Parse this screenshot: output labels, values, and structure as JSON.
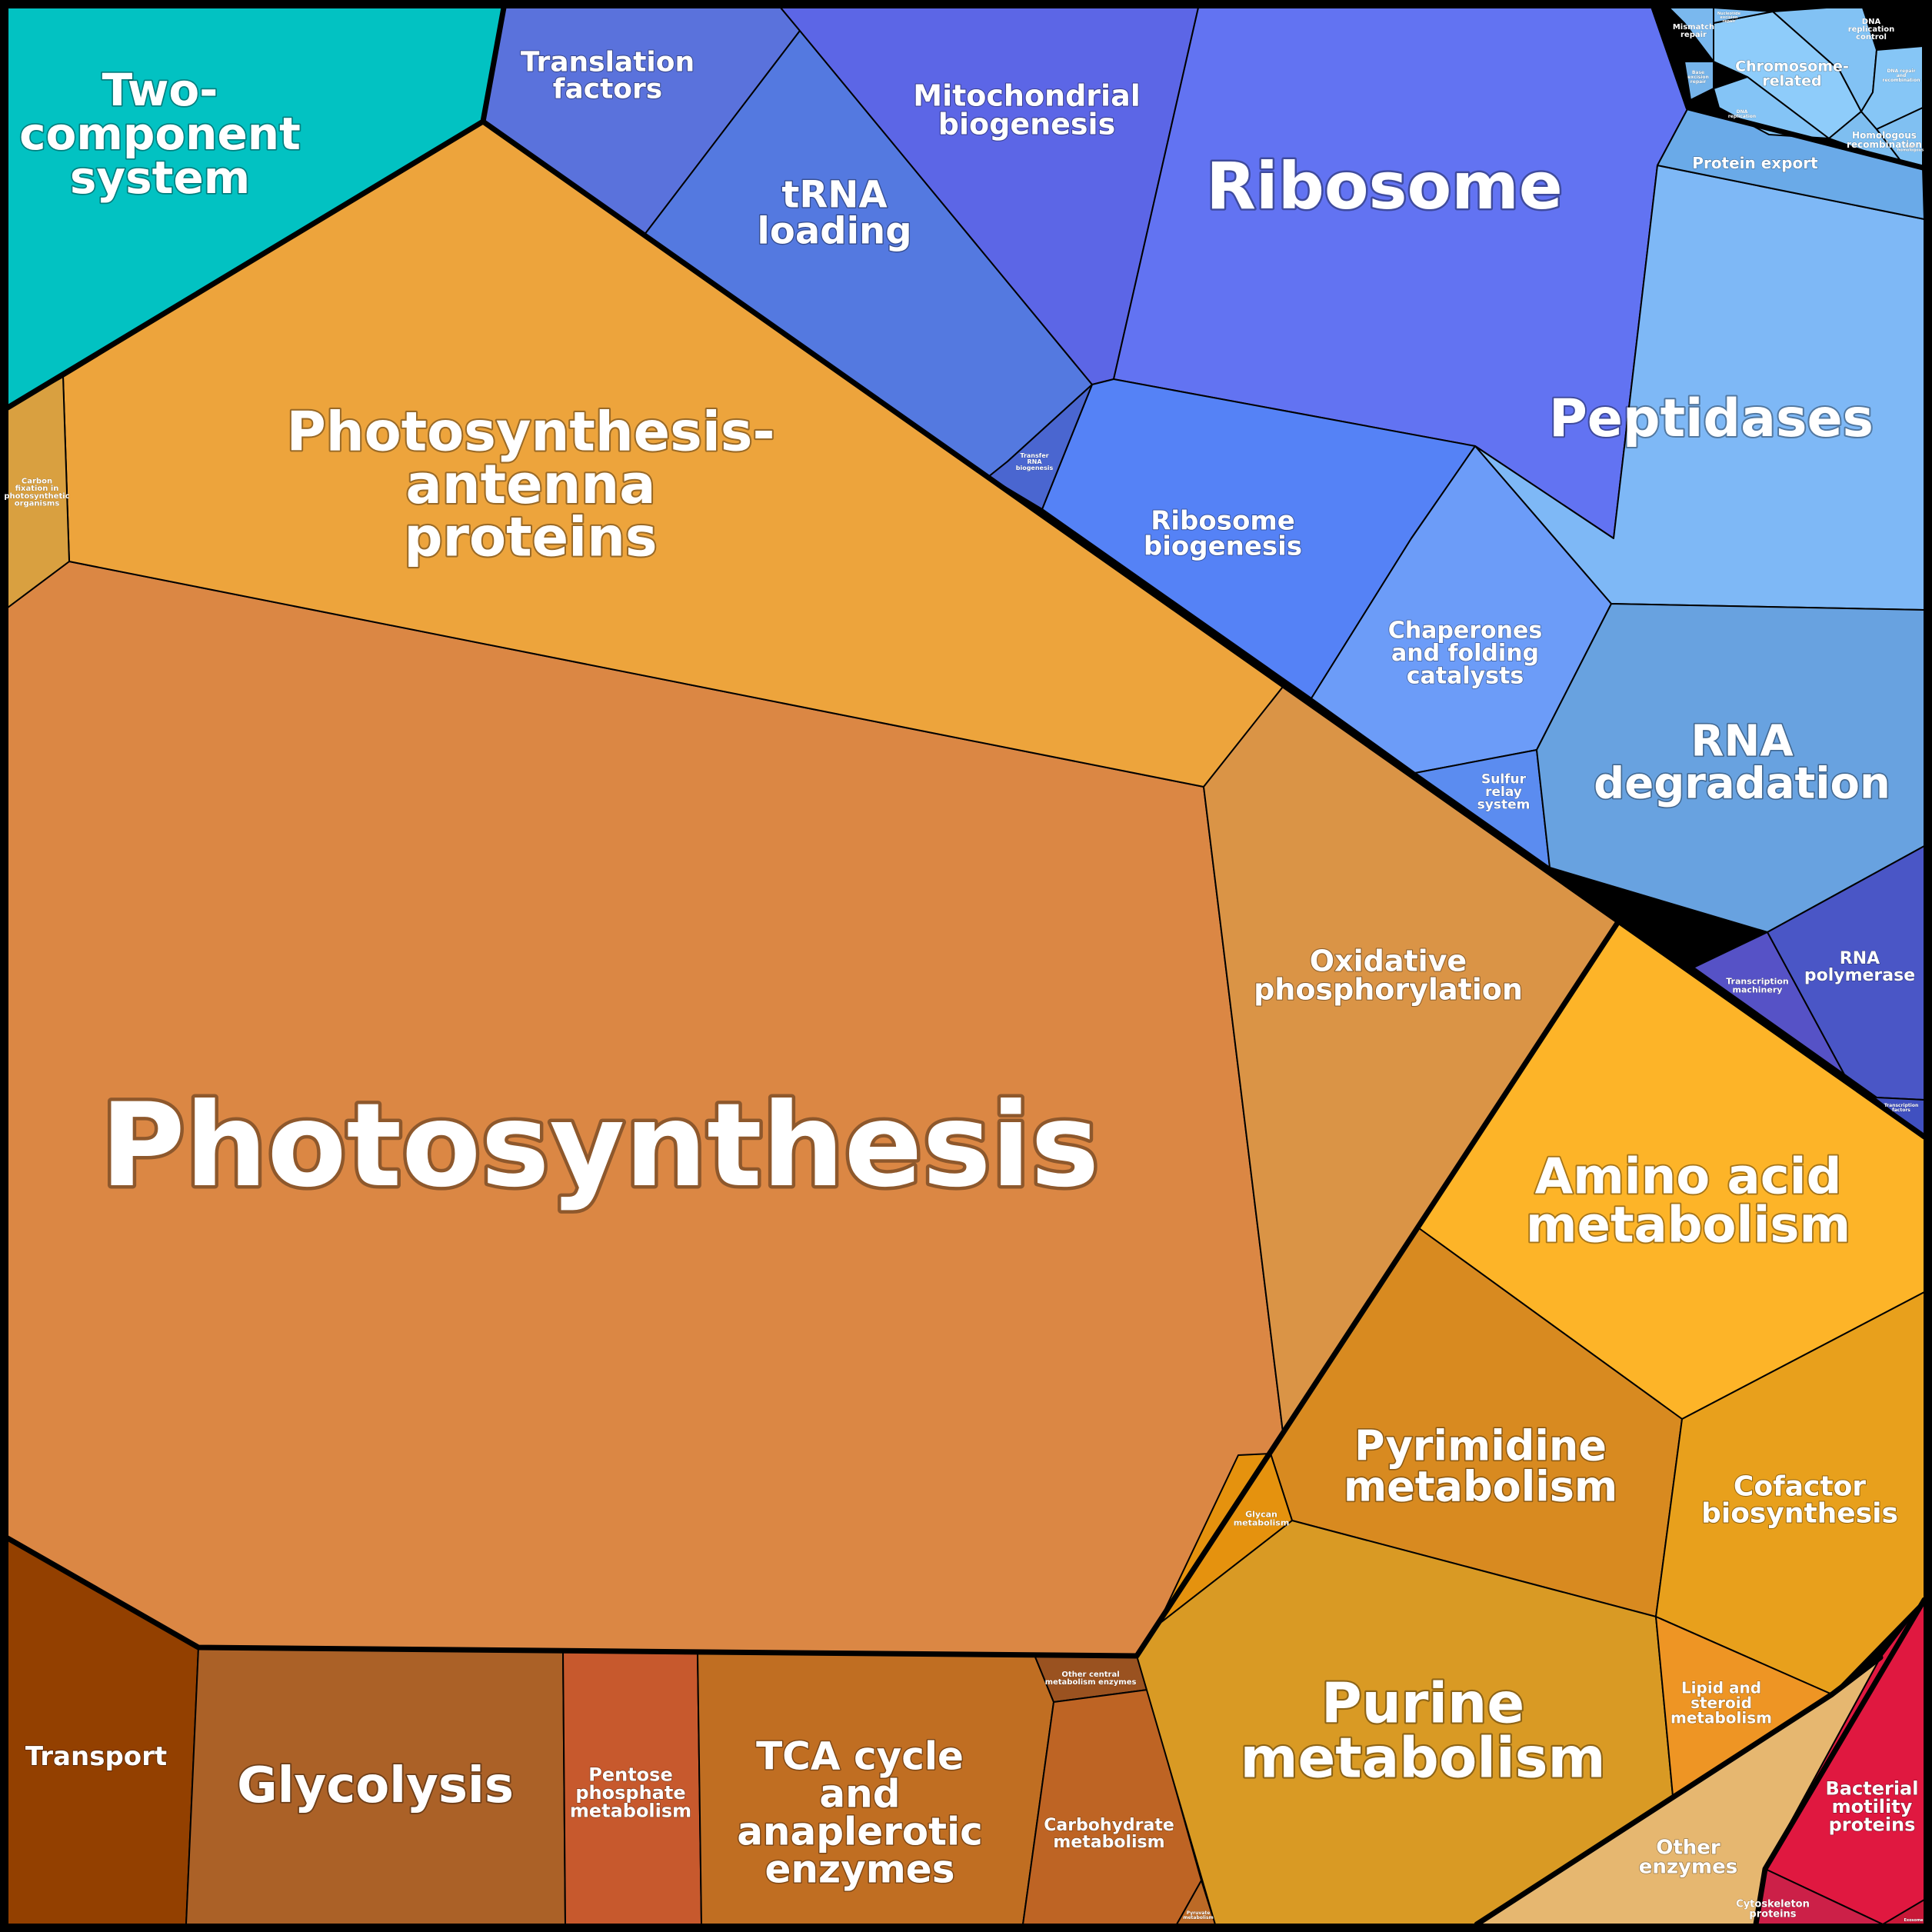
{
  "diagram": {
    "type": "voronoi-treemap",
    "cells": [
      {
        "id": "photosynthesis",
        "label": [
          "Photosynthesis"
        ],
        "color": "#DB8744"
      },
      {
        "id": "antenna",
        "label": [
          "Photosynthesis-",
          "antenna",
          "proteins"
        ],
        "color": "#EDA43C"
      },
      {
        "id": "carbon-fixation",
        "label": [
          "Carbon",
          "fixation in",
          "photosynthetic",
          "organisms"
        ],
        "color": "#D9A040"
      },
      {
        "id": "oxphos",
        "label": [
          "Oxidative",
          "phosphorylation"
        ],
        "color": "#DA9446"
      },
      {
        "id": "two-component",
        "label": [
          "Two-",
          "component",
          "system"
        ],
        "color": "#02C2C2"
      },
      {
        "id": "transport",
        "label": [
          "Transport"
        ],
        "color": "#934000"
      },
      {
        "id": "glycolysis",
        "label": [
          "Glycolysis"
        ],
        "color": "#AB6127"
      },
      {
        "id": "pentose",
        "label": [
          "Pentose",
          "phosphate",
          "metabolism"
        ],
        "color": "#C7592D"
      },
      {
        "id": "tca",
        "label": [
          "TCA cycle",
          "and",
          "anaplerotic",
          "enzymes"
        ],
        "color": "#C06E22"
      },
      {
        "id": "other-central",
        "label": [
          "Other central",
          "metabolism enzymes"
        ],
        "color": "#9A5220"
      },
      {
        "id": "carbohydrate",
        "label": [
          "Carbohydrate",
          "metabolism"
        ],
        "color": "#BE6424"
      },
      {
        "id": "pyruvate",
        "label": [
          "Pyruvate",
          "metabolism"
        ],
        "color": "#BC6A26"
      },
      {
        "id": "amino-acid",
        "label": [
          "Amino acid",
          "metabolism"
        ],
        "color": "#FDB428"
      },
      {
        "id": "pyrimidine",
        "label": [
          "Pyrimidine",
          "metabolism"
        ],
        "color": "#D88A20"
      },
      {
        "id": "cofactor",
        "label": [
          "Cofactor",
          "biosynthesis"
        ],
        "color": "#E8A01C"
      },
      {
        "id": "glycan",
        "label": [
          "Glycan",
          "metabolism"
        ],
        "color": "#E5920E"
      },
      {
        "id": "purine",
        "label": [
          "Purine",
          "metabolism"
        ],
        "color": "#D99A24"
      },
      {
        "id": "lipid",
        "label": [
          "Lipid and",
          "steroid",
          "metabolism"
        ],
        "color": "#EE9524"
      },
      {
        "id": "other-enzymes",
        "label": [
          "Other",
          "enzymes"
        ],
        "color": "#E6B770"
      },
      {
        "id": "bacterial-motility",
        "label": [
          "Bacterial",
          "motility",
          "proteins"
        ],
        "color": "#E01840"
      },
      {
        "id": "cytoskeleton",
        "label": [
          "Cytoskeleton",
          "proteins"
        ],
        "color": "#CC2048"
      },
      {
        "id": "exosome",
        "label": [
          "Exosome"
        ],
        "color": "#C81838"
      },
      {
        "id": "translation-factors",
        "label": [
          "Translation",
          "factors"
        ],
        "color": "#5A72DC"
      },
      {
        "id": "trna-loading",
        "label": [
          "tRNA",
          "loading"
        ],
        "color": "#5479E0"
      },
      {
        "id": "mito-biogenesis",
        "label": [
          "Mitochondrial",
          "biogenesis"
        ],
        "color": "#5C66E6"
      },
      {
        "id": "ribosome",
        "label": [
          "Ribosome"
        ],
        "color": "#6273F2"
      },
      {
        "id": "ribosome-biogenesis",
        "label": [
          "Ribosome",
          "biogenesis"
        ],
        "color": "#5582F6"
      },
      {
        "id": "transfer-rna",
        "label": [
          "Transfer",
          "RNA",
          "biogenesis"
        ],
        "color": "#4A66D0"
      },
      {
        "id": "peptidases",
        "label": [
          "Peptidases"
        ],
        "color": "#7EB8F6"
      },
      {
        "id": "protein-export",
        "label": [
          "Protein export"
        ],
        "color": "#6AAAE8"
      },
      {
        "id": "chaperones",
        "label": [
          "Chaperones",
          "and folding",
          "catalysts"
        ],
        "color": "#6C9CF8"
      },
      {
        "id": "sulfur-relay",
        "label": [
          "Sulfur",
          "relay",
          "system"
        ],
        "color": "#5B8CF0"
      },
      {
        "id": "rna-degradation",
        "label": [
          "RNA",
          "degradation"
        ],
        "color": "#68A2E0"
      },
      {
        "id": "transcription-machinery",
        "label": [
          "Transcription",
          "machinery"
        ],
        "color": "#5652C6"
      },
      {
        "id": "rna-polymerase",
        "label": [
          "RNA",
          "polymerase"
        ],
        "color": "#4A56C6"
      },
      {
        "id": "transcription-factors",
        "label": [
          "Transcription",
          "factors"
        ],
        "color": "#4050C0"
      },
      {
        "id": "chromosome-related",
        "label": [
          "Chromosome-",
          "related"
        ],
        "color": "#8ECCFA"
      },
      {
        "id": "dna-replication-control",
        "label": [
          "DNA",
          "replication",
          "control"
        ],
        "color": "#82C2F4"
      },
      {
        "id": "homologous-recombination",
        "label": [
          "Homologous",
          "recombination"
        ],
        "color": "#7EBEF0"
      },
      {
        "id": "mismatch-repair",
        "label": [
          "Mismatch",
          "repair"
        ],
        "color": "#7AB8EE"
      },
      {
        "id": "base-excision",
        "label": [
          "Base",
          "excision",
          "repair"
        ],
        "color": "#76B4EA"
      },
      {
        "id": "dna-replication",
        "label": [
          "DNA",
          "replication"
        ],
        "color": "#84C4F6"
      },
      {
        "id": "nucleotide-excision",
        "label": [
          "Nucleotide",
          "excision",
          "repair"
        ],
        "color": "#7CBCF2"
      },
      {
        "id": "dna-repair",
        "label": [
          "DNA repair",
          "and",
          "recombination"
        ],
        "color": "#86C6F6"
      },
      {
        "id": "nonhomologous",
        "label": [
          "Non-",
          "homologous"
        ],
        "color": "#80C0F2"
      }
    ]
  }
}
